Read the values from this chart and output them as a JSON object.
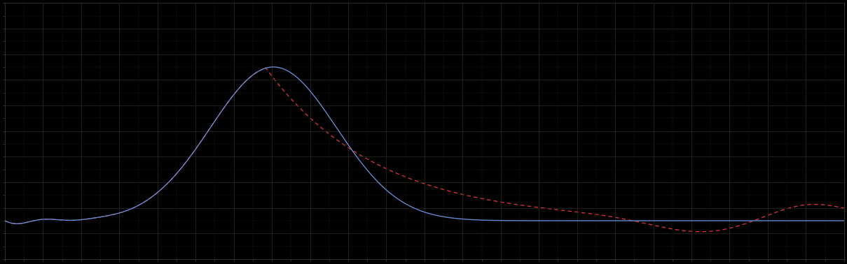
{
  "background_color": "#000000",
  "plot_bg_color": "#000000",
  "grid_color": "#2a2a2a",
  "line1_color": "#6688cc",
  "line2_color": "#cc3333",
  "line1_style": "-",
  "line2_style": "--",
  "line_width": 1.0,
  "figsize": [
    12.09,
    3.78
  ],
  "dpi": 100,
  "xlim": [
    0,
    100
  ],
  "ylim": [
    0,
    14
  ],
  "spine_color": "#444444",
  "tick_color": "#444444",
  "n_x_major": 22,
  "n_y_major": 10,
  "n_x_minor": 2,
  "n_y_minor": 2
}
